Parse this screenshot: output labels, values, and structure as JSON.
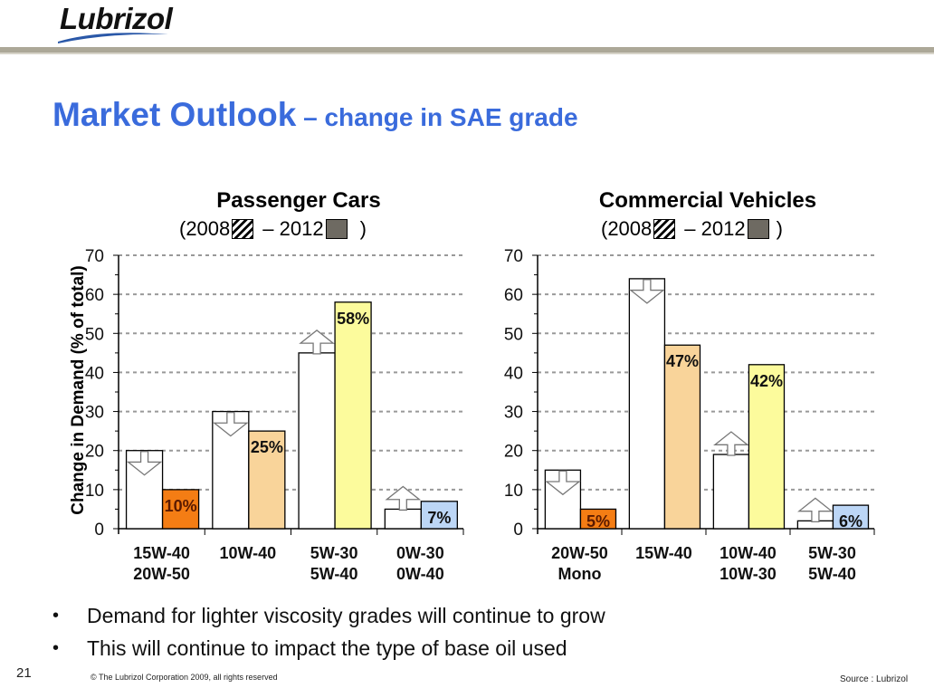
{
  "logo": {
    "text": "Lubrizol"
  },
  "title": {
    "main": "Market Outlook",
    "sub": " – change in SAE grade"
  },
  "colors": {
    "title": "#3a6bdc",
    "old_bar": "#ffffff",
    "orange": "#f47d14",
    "peach": "#f9d49a",
    "yellow": "#fcfb9c",
    "blue": "#bcd6f6"
  },
  "chart_data": [
    {
      "type": "bar",
      "title": "Passenger Cars",
      "legend": {
        "open": "(2008",
        "mid": "– 2012",
        "close": ")"
      },
      "ylabel": "Change in Demand (% of total)",
      "ylim": [
        0,
        70
      ],
      "yticks": [
        0,
        10,
        20,
        30,
        40,
        50,
        60,
        70
      ],
      "grid": true,
      "categories": [
        [
          "15W-40",
          "20W-50"
        ],
        [
          "10W-40",
          ""
        ],
        [
          "5W-30",
          "5W-40"
        ],
        [
          "0W-30",
          "0W-40"
        ]
      ],
      "series": [
        {
          "name": "2008",
          "values": [
            20,
            30,
            45,
            5
          ]
        },
        {
          "name": "2012",
          "values": [
            10,
            25,
            58,
            7
          ],
          "labels": [
            "10%",
            "25%",
            "58%",
            "7%"
          ],
          "colors": [
            "#f47d14",
            "#f9d49a",
            "#fcfb9c",
            "#bcd6f6"
          ]
        }
      ],
      "arrows": [
        "down",
        "down",
        "up",
        "up"
      ]
    },
    {
      "type": "bar",
      "title": "Commercial Vehicles",
      "legend": {
        "open": "(2008",
        "mid": "– 2012",
        "close": ")"
      },
      "ylim": [
        0,
        70
      ],
      "yticks": [
        0,
        10,
        20,
        30,
        40,
        50,
        60,
        70
      ],
      "grid": true,
      "categories": [
        [
          "20W-50",
          "Mono"
        ],
        [
          "15W-40",
          ""
        ],
        [
          "10W-40",
          "10W-30"
        ],
        [
          "5W-30",
          "5W-40"
        ]
      ],
      "series": [
        {
          "name": "2008",
          "values": [
            15,
            64,
            19,
            2
          ]
        },
        {
          "name": "2012",
          "values": [
            5,
            47,
            42,
            6
          ],
          "labels": [
            "5%",
            "47%",
            "42%",
            "6%"
          ],
          "colors": [
            "#f47d14",
            "#f9d49a",
            "#fcfb9c",
            "#bcd6f6"
          ]
        }
      ],
      "arrows": [
        "down",
        "down",
        "up",
        "up"
      ]
    }
  ],
  "bullets": [
    "Demand for lighter viscosity grades will continue to grow",
    "This will continue to impact the type of base oil used"
  ],
  "footer": {
    "page_number": "21",
    "copyright": "© The Lubrizol Corporation 2009, all rights reserved",
    "source": "Source : Lubrizol"
  }
}
